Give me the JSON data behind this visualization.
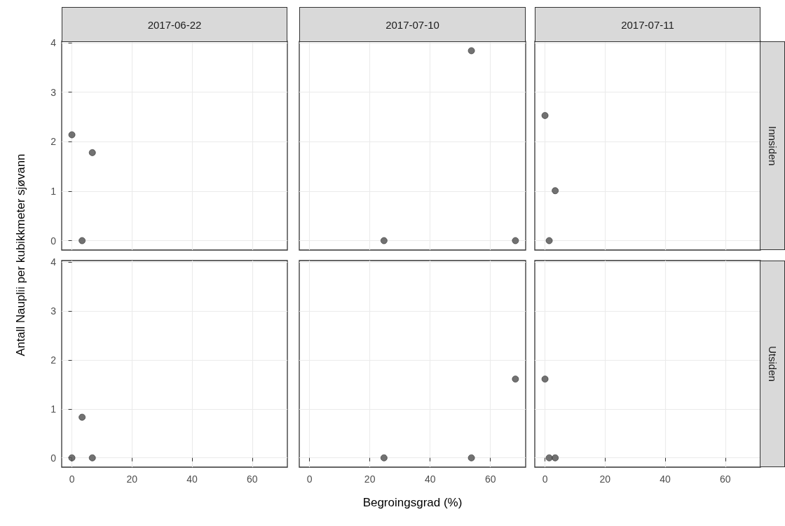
{
  "chart_data": [
    {
      "type": "scatter",
      "title": "2017-06-22",
      "ylabel": "Antall Nauplii per kubikkmeter sjøvann",
      "x": [
        0,
        6.8,
        3.4
      ],
      "values": [
        2.14,
        1.78,
        0
      ],
      "color": "#595959",
      "marker": "circle",
      "xlim": [
        -3.4,
        71.7
      ],
      "ylim": [
        -0.19,
        4.03
      ],
      "xticks": [
        0,
        20,
        40,
        60
      ],
      "yticks": [
        0,
        1,
        2,
        3,
        4
      ],
      "grid": true,
      "tick_labels": "y"
    },
    {
      "type": "scatter",
      "title": "2017-07-10",
      "x": [
        53.7,
        24.7,
        68.3
      ],
      "values": [
        3.84,
        0,
        0
      ],
      "color": "#595959",
      "marker": "circle",
      "xlim": [
        -3.4,
        71.7
      ],
      "ylim": [
        -0.19,
        4.03
      ],
      "xticks": [
        0,
        20,
        40,
        60
      ],
      "yticks": [
        0,
        1,
        2,
        3,
        4
      ],
      "grid": true,
      "tick_labels": false
    },
    {
      "type": "scatter",
      "title": "2017-07-11",
      "annotations": [
        "Innsiden"
      ],
      "x": [
        0,
        3.4,
        1.4
      ],
      "values": [
        2.53,
        1.01,
        0
      ],
      "color": "#595959",
      "marker": "circle",
      "xlim": [
        -3.4,
        71.7
      ],
      "ylim": [
        -0.19,
        4.03
      ],
      "xticks": [
        0,
        20,
        40,
        60
      ],
      "yticks": [
        0,
        1,
        2,
        3,
        4
      ],
      "grid": true,
      "tick_labels": false
    },
    {
      "type": "scatter",
      "x": [
        0,
        3.4,
        6.8
      ],
      "values": [
        0,
        0.83,
        0
      ],
      "color": "#595959",
      "marker": "circle",
      "xlim": [
        -3.4,
        71.7
      ],
      "ylim": [
        -0.19,
        4.03
      ],
      "xticks": [
        0,
        20,
        40,
        60
      ],
      "yticks": [
        0,
        1,
        2,
        3,
        4
      ],
      "grid": true
    },
    {
      "type": "scatter",
      "xlabel": "Begroingsgrad (%)",
      "x": [
        24.7,
        53.7,
        68.3
      ],
      "values": [
        0,
        0,
        1.61
      ],
      "color": "#595959",
      "marker": "circle",
      "xlim": [
        -3.4,
        71.7
      ],
      "ylim": [
        -0.19,
        4.03
      ],
      "xticks": [
        0,
        20,
        40,
        60
      ],
      "yticks": [
        0,
        1,
        2,
        3,
        4
      ],
      "grid": true,
      "tick_labels": "x"
    },
    {
      "type": "scatter",
      "annotations": [
        "Utsiden"
      ],
      "x": [
        0,
        1.4,
        3.4
      ],
      "values": [
        1.61,
        0,
        0
      ],
      "color": "#595959",
      "marker": "circle",
      "xlim": [
        -3.4,
        71.7
      ],
      "ylim": [
        -0.19,
        4.03
      ],
      "xticks": [
        0,
        20,
        40,
        60
      ],
      "yticks": [
        0,
        1,
        2,
        3,
        4
      ],
      "grid": true,
      "tick_labels": "x"
    }
  ]
}
